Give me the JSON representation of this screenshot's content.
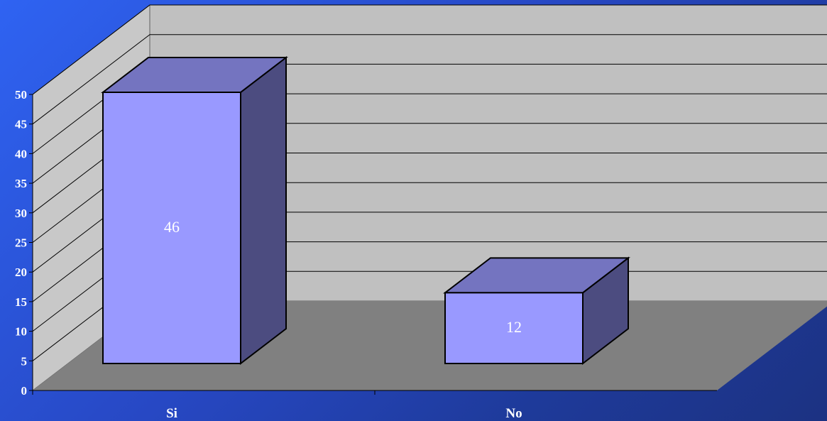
{
  "chart_data": {
    "type": "bar",
    "categories": [
      "Si",
      "No"
    ],
    "values": [
      46,
      12
    ],
    "data_labels": [
      "46",
      "12"
    ],
    "title": "",
    "xlabel": "",
    "ylabel": "",
    "ylim": [
      0,
      50
    ],
    "yticks": [
      0,
      5,
      10,
      15,
      20,
      25,
      30,
      35,
      40,
      45,
      50
    ],
    "grid": true,
    "style": "3d",
    "colors": {
      "bar_front": "#9999ff",
      "bar_top": "#7474c0",
      "bar_side": "#4c4c80",
      "back_wall": "#c0c0c0",
      "side_wall": "#c8c8c8",
      "floor": "#808080",
      "background": "#2748c4"
    }
  }
}
